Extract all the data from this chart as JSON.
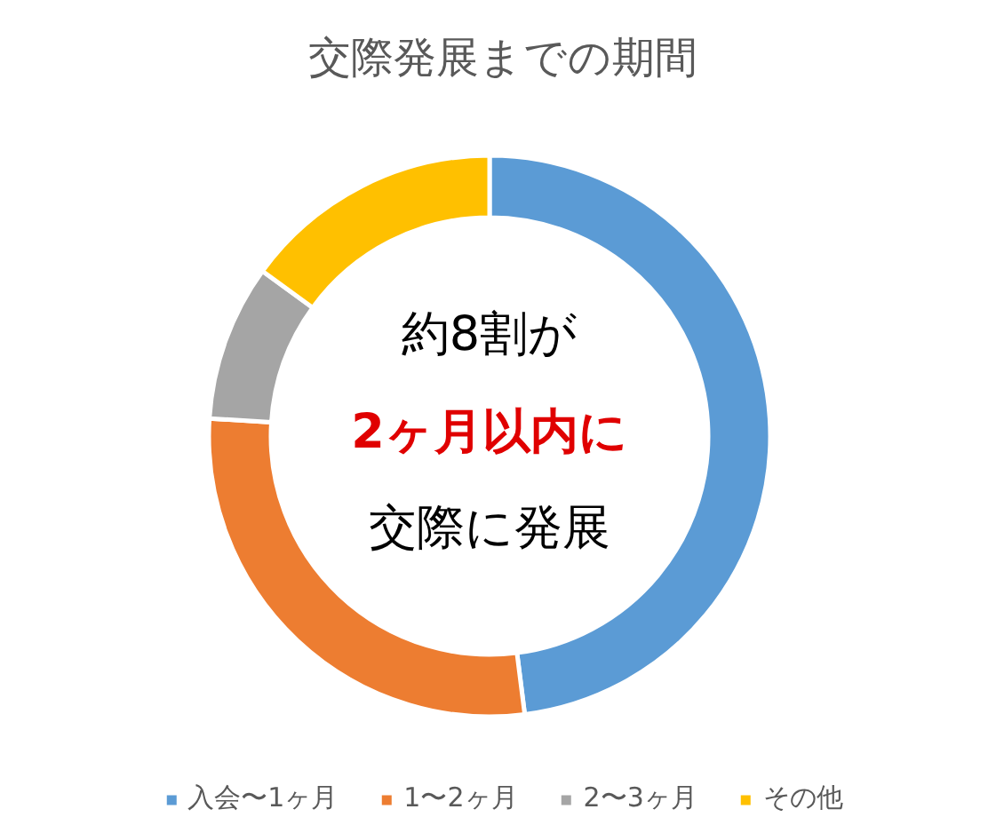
{
  "chart_data": {
    "type": "donut",
    "title": "交際発展までの期間",
    "categories": [
      "入会〜1ヶ月",
      "1〜2ヶ月",
      "2〜3ヶ月",
      "その他"
    ],
    "values": [
      48,
      28,
      9,
      15
    ],
    "colors": [
      "#5b9bd5",
      "#ed7d31",
      "#a5a5a5",
      "#ffc000"
    ],
    "legend": "bottom",
    "annotations": [
      "約8割が",
      "2ヶ月以内に",
      "交際に発展"
    ]
  }
}
